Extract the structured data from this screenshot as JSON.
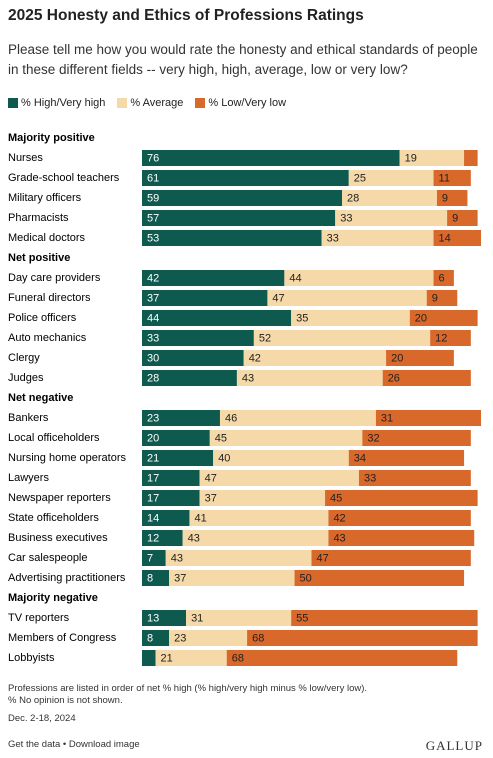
{
  "chart_data": {
    "type": "stacked-bar-horizontal",
    "title": "2025 Honesty and Ethics of Professions Ratings",
    "subtitle": "Please tell me how you would rate the honesty and ethical standards of people in these different fields -- very high, high, average, low or very low?",
    "groups": [
      {
        "name": "Majority positive",
        "categories": [
          "Nurses",
          "Grade-school teachers",
          "Military officers",
          "Pharmacists",
          "Medical doctors"
        ]
      },
      {
        "name": "Net positive",
        "categories": [
          "Day care providers",
          "Funeral directors",
          "Police officers",
          "Auto mechanics",
          "Clergy",
          "Judges"
        ]
      },
      {
        "name": "Net negative",
        "categories": [
          "Bankers",
          "Local officeholders",
          "Nursing home operators",
          "Lawyers",
          "Newspaper reporters",
          "State officeholders",
          "Business executives",
          "Car salespeople",
          "Advertising practitioners"
        ]
      },
      {
        "name": "Majority negative",
        "categories": [
          "TV reporters",
          "Members of Congress",
          "Lobbyists"
        ]
      }
    ],
    "series": [
      {
        "name": "% High/Very high",
        "color": "#0f5a4e",
        "values": [
          76,
          61,
          59,
          57,
          53,
          42,
          37,
          44,
          33,
          30,
          28,
          23,
          20,
          21,
          17,
          17,
          14,
          12,
          7,
          8,
          13,
          8,
          4
        ]
      },
      {
        "name": "% Average",
        "color": "#f5d9a8",
        "values": [
          19,
          25,
          28,
          33,
          33,
          44,
          47,
          35,
          52,
          42,
          43,
          46,
          45,
          40,
          47,
          37,
          41,
          43,
          43,
          37,
          31,
          23,
          21
        ]
      },
      {
        "name": "% Low/Very low",
        "color": "#d9682b",
        "values": [
          4,
          11,
          9,
          9,
          14,
          6,
          9,
          20,
          12,
          20,
          26,
          31,
          32,
          34,
          33,
          45,
          42,
          43,
          47,
          50,
          55,
          68,
          68
        ]
      }
    ],
    "notes": [
      "Professions are listed in order of net % high (% high/very high minus % low/very low).",
      "% No opinion is not shown."
    ],
    "date": "Dec. 2-18, 2024",
    "links": "Get the data • Download image",
    "source": "GALLUP"
  }
}
